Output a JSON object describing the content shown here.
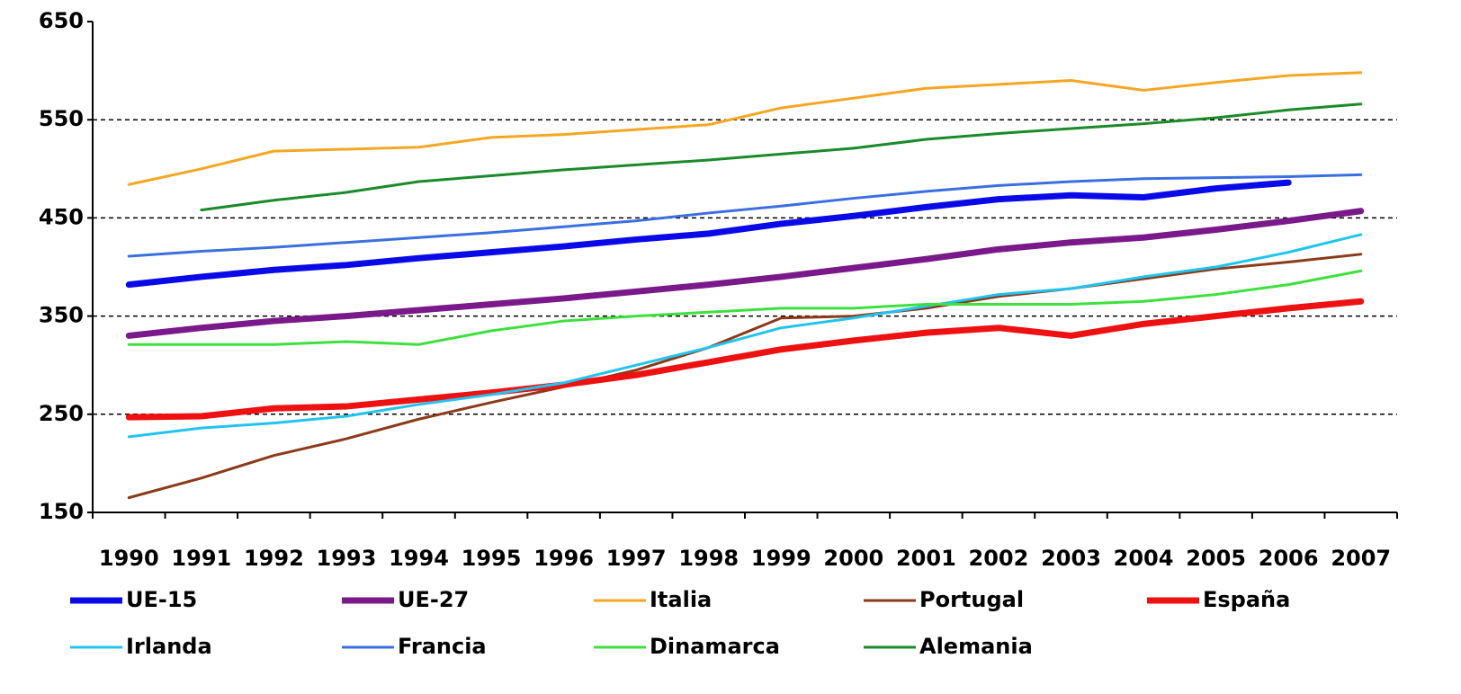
{
  "chart_data": {
    "type": "line",
    "categories": [
      "1990",
      "1991",
      "1992",
      "1993",
      "1994",
      "1995",
      "1996",
      "1997",
      "1998",
      "1999",
      "2000",
      "2001",
      "2002",
      "2003",
      "2004",
      "2005",
      "2006",
      "2007"
    ],
    "ylim": [
      150,
      650
    ],
    "yticks": [
      150,
      250,
      350,
      450,
      550,
      650
    ],
    "grid": true,
    "series": [
      {
        "name": "UE-15",
        "color": "#0a0ae8",
        "line_width": 7,
        "values": [
          382,
          390,
          397,
          402,
          409,
          415,
          421,
          428,
          434,
          444,
          452,
          461,
          469,
          473,
          471,
          480,
          486,
          null
        ]
      },
      {
        "name": "UE-27",
        "color": "#7a1a8a",
        "line_width": 7,
        "values": [
          330,
          338,
          345,
          350,
          356,
          362,
          368,
          375,
          382,
          390,
          399,
          408,
          418,
          425,
          430,
          438,
          447,
          457
        ]
      },
      {
        "name": "Italia",
        "color": "#f5a623",
        "line_width": 3,
        "values": [
          484,
          500,
          518,
          520,
          522,
          532,
          535,
          540,
          545,
          562,
          572,
          582,
          586,
          590,
          580,
          588,
          595,
          598
        ]
      },
      {
        "name": "Portugal",
        "color": "#8b3a1a",
        "line_width": 3,
        "values": [
          165,
          185,
          208,
          225,
          245,
          262,
          278,
          295,
          318,
          348,
          350,
          358,
          370,
          378,
          388,
          398,
          405,
          413
        ]
      },
      {
        "name": "España",
        "color": "#ee1111",
        "line_width": 7,
        "values": [
          247,
          248,
          256,
          258,
          265,
          272,
          280,
          290,
          303,
          316,
          325,
          333,
          338,
          330,
          342,
          350,
          358,
          365
        ]
      },
      {
        "name": "Irlanda",
        "color": "#22c4ee",
        "line_width": 3,
        "values": [
          227,
          236,
          241,
          248,
          260,
          270,
          282,
          300,
          318,
          338,
          348,
          360,
          372,
          378,
          390,
          400,
          415,
          433
        ]
      },
      {
        "name": "Francia",
        "color": "#3b6fe0",
        "line_width": 3,
        "values": [
          411,
          416,
          420,
          425,
          430,
          435,
          441,
          447,
          455,
          462,
          470,
          477,
          483,
          487,
          490,
          491,
          492,
          494
        ]
      },
      {
        "name": "Dinamarca",
        "color": "#3ee03e",
        "line_width": 3,
        "values": [
          321,
          321,
          321,
          324,
          321,
          335,
          345,
          350,
          354,
          358,
          358,
          362,
          362,
          362,
          365,
          372,
          382,
          396
        ]
      },
      {
        "name": "Alemania",
        "color": "#1a8a2a",
        "line_width": 3,
        "values": [
          null,
          458,
          468,
          476,
          487,
          493,
          499,
          504,
          509,
          515,
          521,
          530,
          536,
          541,
          546,
          552,
          560,
          566
        ]
      }
    ]
  }
}
